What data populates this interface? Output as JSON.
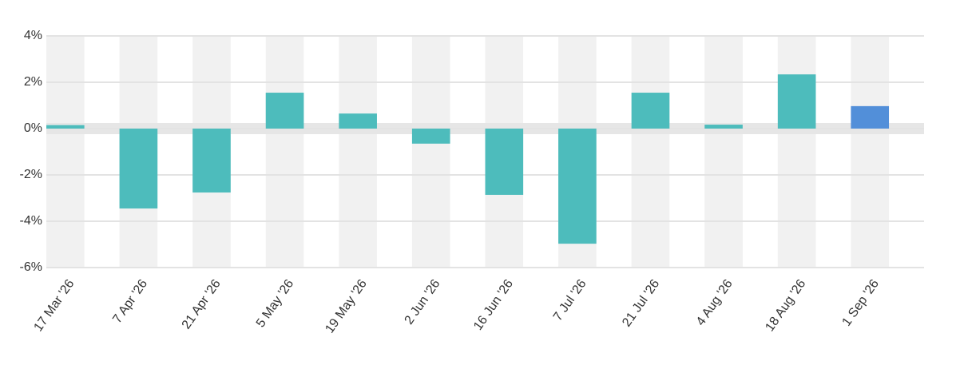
{
  "chart_data": {
    "type": "bar",
    "categories": [
      "17 Mar '26",
      "7 Apr '26",
      "21 Apr '26",
      "5 May '26",
      "19 May '26",
      "2 Jun '26",
      "16 Jun '26",
      "7 Jul '26",
      "21 Jul '26",
      "4 Aug '26",
      "18 Aug '26",
      "1 Sep '26"
    ],
    "values": [
      0.15,
      -3.45,
      -2.76,
      1.55,
      0.65,
      -0.65,
      -2.86,
      -4.97,
      1.55,
      0.17,
      2.34,
      0.97
    ],
    "colors": [
      "#4dbcbc",
      "#4dbcbc",
      "#4dbcbc",
      "#4dbcbc",
      "#4dbcbc",
      "#4dbcbc",
      "#4dbcbc",
      "#4dbcbc",
      "#4dbcbc",
      "#4dbcbc",
      "#4dbcbc",
      "#528fd9"
    ],
    "ylim": [
      -6,
      4
    ],
    "yticks": [
      {
        "value": 4,
        "label": "4%"
      },
      {
        "value": 2,
        "label": "2%"
      },
      {
        "value": 0,
        "label": "0%"
      },
      {
        "value": -2,
        "label": "-2%"
      },
      {
        "value": -4,
        "label": "-4%"
      },
      {
        "value": -6,
        "label": "-6%"
      }
    ],
    "grid": true
  }
}
